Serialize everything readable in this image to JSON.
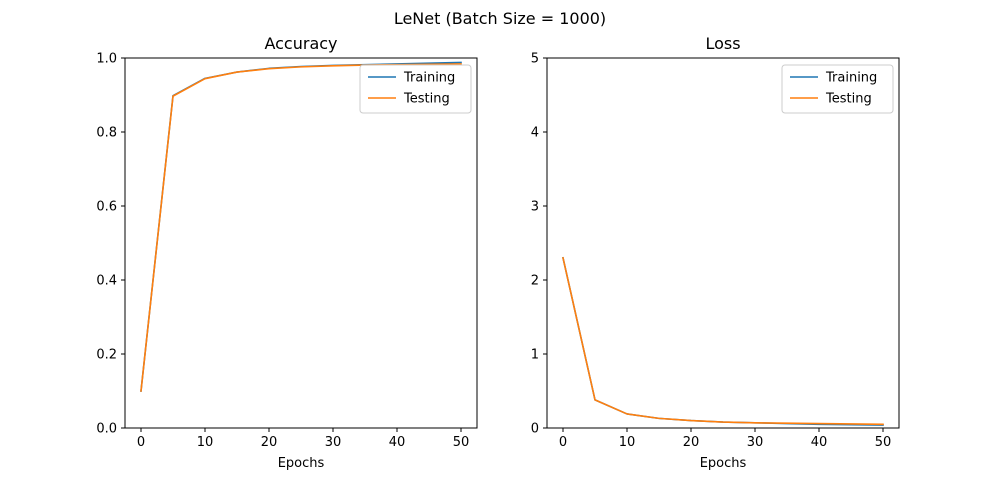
{
  "figure_title": "LeNet (Batch Size = 1000)",
  "colors": {
    "training": "#1f77b4",
    "testing": "#ff7f0e"
  },
  "chart_data": [
    {
      "type": "line",
      "title": "Accuracy",
      "xlabel": "Epochs",
      "ylabel": "",
      "xlim": [
        -2.5,
        52.5
      ],
      "ylim": [
        0,
        1.0
      ],
      "xticks": [
        0,
        10,
        20,
        30,
        40,
        50
      ],
      "xtick_labels": [
        "0",
        "10",
        "20",
        "30",
        "40",
        "50"
      ],
      "yticks": [
        0,
        0.2,
        0.4,
        0.6,
        0.8,
        1.0
      ],
      "ytick_labels": [
        "0.0",
        "0.2",
        "0.4",
        "0.6",
        "0.8",
        "1.0"
      ],
      "grid": false,
      "legend": "top-right",
      "x": [
        0,
        5,
        10,
        15,
        20,
        25,
        30,
        35,
        40,
        45,
        50
      ],
      "series": [
        {
          "name": "Training",
          "values": [
            0.1,
            0.898,
            0.945,
            0.962,
            0.972,
            0.977,
            0.98,
            0.982,
            0.984,
            0.986,
            0.988
          ]
        },
        {
          "name": "Testing",
          "values": [
            0.1,
            0.897,
            0.944,
            0.962,
            0.971,
            0.976,
            0.979,
            0.981,
            0.982,
            0.983,
            0.984
          ]
        }
      ]
    },
    {
      "type": "line",
      "title": "Loss",
      "xlabel": "Epochs",
      "ylabel": "",
      "xlim": [
        -2.5,
        52.5
      ],
      "ylim": [
        0,
        5
      ],
      "xticks": [
        0,
        10,
        20,
        30,
        40,
        50
      ],
      "xtick_labels": [
        "0",
        "10",
        "20",
        "30",
        "40",
        "50"
      ],
      "yticks": [
        0,
        1,
        2,
        3,
        4,
        5
      ],
      "ytick_labels": [
        "0",
        "1",
        "2",
        "3",
        "4",
        "5"
      ],
      "grid": false,
      "legend": "top-right",
      "x": [
        0,
        5,
        10,
        15,
        20,
        25,
        30,
        35,
        40,
        45,
        50
      ],
      "series": [
        {
          "name": "Training",
          "values": [
            2.3,
            0.38,
            0.19,
            0.13,
            0.1,
            0.08,
            0.07,
            0.06,
            0.05,
            0.045,
            0.04
          ]
        },
        {
          "name": "Testing",
          "values": [
            2.3,
            0.38,
            0.19,
            0.13,
            0.1,
            0.08,
            0.07,
            0.065,
            0.06,
            0.055,
            0.05
          ]
        }
      ]
    }
  ]
}
